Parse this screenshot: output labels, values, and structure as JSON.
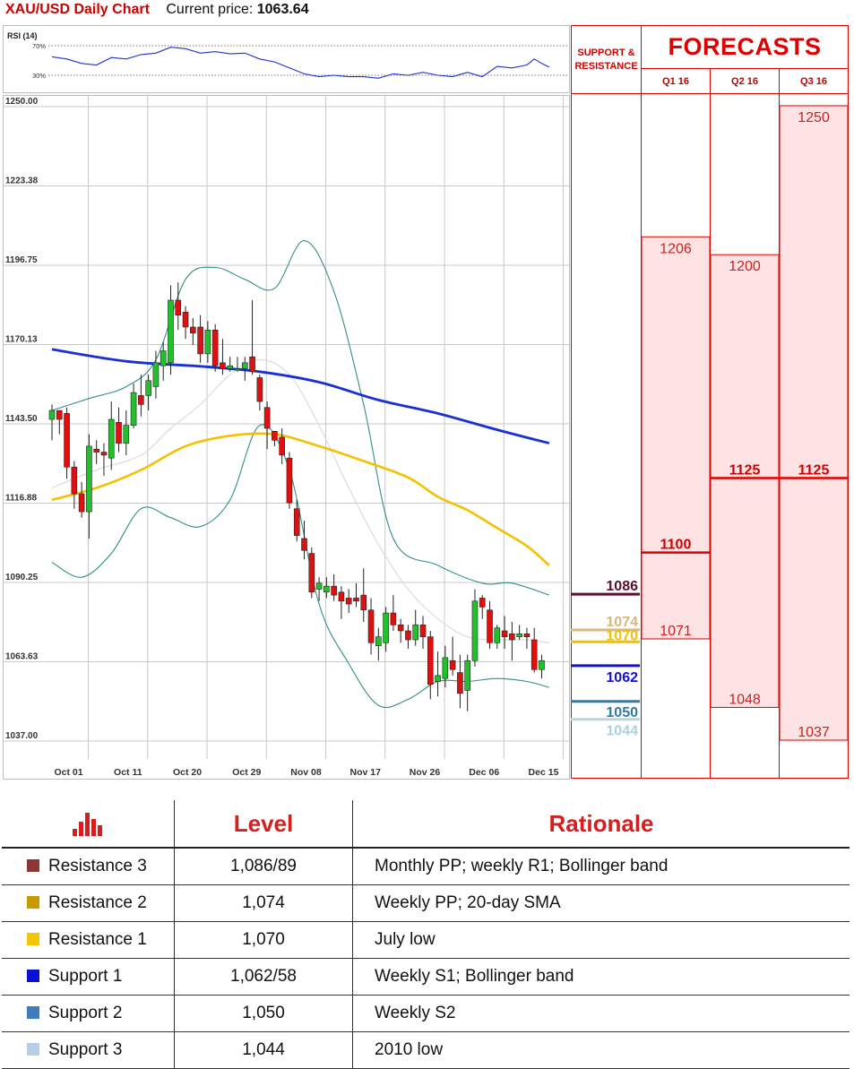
{
  "header": {
    "title": "XAU/USD Daily Chart",
    "price_label": "Current price:",
    "price_value": "1063.64"
  },
  "chart_data": {
    "type": "candlestick",
    "title": "XAU/USD Daily Chart",
    "ylim": [
      1037.0,
      1250.0
    ],
    "y_ticks": [
      "1250.00",
      "1223.38",
      "1196.75",
      "1170.13",
      "1143.50",
      "1116.88",
      "1090.25",
      "1063.63",
      "1037.00"
    ],
    "x_ticks": [
      {
        "i": 2,
        "label": "Oct 01"
      },
      {
        "i": 10,
        "label": "Oct 11"
      },
      {
        "i": 18,
        "label": "Oct 20"
      },
      {
        "i": 26,
        "label": "Oct 29"
      },
      {
        "i": 34,
        "label": "Nov 08"
      },
      {
        "i": 42,
        "label": "Nov 17"
      },
      {
        "i": 50,
        "label": "Nov 26"
      },
      {
        "i": 58,
        "label": "Dec 06"
      },
      {
        "i": 66,
        "label": "Dec 15"
      }
    ],
    "candles": [
      [
        1145,
        1150,
        1138,
        1148
      ],
      [
        1148,
        1148,
        1140,
        1145
      ],
      [
        1147,
        1149,
        1125,
        1129
      ],
      [
        1129,
        1131,
        1115,
        1120
      ],
      [
        1120,
        1124,
        1112,
        1114
      ],
      [
        1114,
        1140,
        1105,
        1136
      ],
      [
        1135,
        1138,
        1130,
        1134
      ],
      [
        1134,
        1137,
        1126,
        1133
      ],
      [
        1132,
        1151,
        1128,
        1145
      ],
      [
        1144,
        1149,
        1134,
        1137
      ],
      [
        1137,
        1148,
        1133,
        1143
      ],
      [
        1143,
        1157,
        1142,
        1154
      ],
      [
        1153,
        1160,
        1146,
        1150
      ],
      [
        1153,
        1160,
        1148,
        1158
      ],
      [
        1156,
        1168,
        1152,
        1164
      ],
      [
        1163,
        1171,
        1158,
        1168
      ],
      [
        1164,
        1190,
        1160,
        1185
      ],
      [
        1185,
        1191,
        1175,
        1180
      ],
      [
        1181,
        1183,
        1172,
        1176
      ],
      [
        1176,
        1179,
        1170,
        1174
      ],
      [
        1176,
        1180,
        1164,
        1167
      ],
      [
        1167,
        1178,
        1164,
        1175
      ],
      [
        1175,
        1177,
        1161,
        1163
      ],
      [
        1164,
        1172,
        1160,
        1162
      ],
      [
        1162,
        1166,
        1161,
        1163
      ],
      [
        1162,
        1166,
        1161,
        1162
      ],
      [
        1162,
        1166,
        1158,
        1164
      ],
      [
        1166,
        1185,
        1160,
        1161
      ],
      [
        1159,
        1160,
        1148,
        1151
      ],
      [
        1149,
        1151,
        1135,
        1142
      ],
      [
        1141,
        1141,
        1136,
        1138
      ],
      [
        1139,
        1142,
        1130,
        1133
      ],
      [
        1132,
        1134,
        1115,
        1117
      ],
      [
        1115,
        1118,
        1104,
        1106
      ],
      [
        1105,
        1111,
        1098,
        1101
      ],
      [
        1100,
        1102,
        1085,
        1087
      ],
      [
        1088,
        1092,
        1084,
        1090
      ],
      [
        1087,
        1092,
        1085,
        1089
      ],
      [
        1089,
        1093,
        1084,
        1086
      ],
      [
        1087,
        1089,
        1078,
        1084
      ],
      [
        1085,
        1088,
        1080,
        1083
      ],
      [
        1085,
        1090,
        1082,
        1084
      ],
      [
        1086,
        1095,
        1077,
        1081
      ],
      [
        1081,
        1085,
        1066,
        1070
      ],
      [
        1069,
        1075,
        1064,
        1072
      ],
      [
        1070,
        1082,
        1067,
        1080
      ],
      [
        1080,
        1086,
        1074,
        1076
      ],
      [
        1076,
        1078,
        1070,
        1074
      ],
      [
        1074,
        1076,
        1068,
        1071
      ],
      [
        1071,
        1081,
        1069,
        1076
      ],
      [
        1076,
        1079,
        1068,
        1072
      ],
      [
        1072,
        1074,
        1051,
        1056
      ],
      [
        1057,
        1067,
        1052,
        1059
      ],
      [
        1058,
        1069,
        1055,
        1065
      ],
      [
        1064,
        1072,
        1059,
        1061
      ],
      [
        1060,
        1066,
        1048,
        1053
      ],
      [
        1054,
        1066,
        1047,
        1064
      ],
      [
        1064,
        1088,
        1062,
        1084
      ],
      [
        1085,
        1086,
        1078,
        1082
      ],
      [
        1081,
        1084,
        1068,
        1070
      ],
      [
        1070,
        1076,
        1068,
        1075
      ],
      [
        1074,
        1079,
        1068,
        1072
      ],
      [
        1073,
        1077,
        1064,
        1071
      ],
      [
        1072,
        1076,
        1071,
        1073
      ],
      [
        1073,
        1075,
        1068,
        1072
      ],
      [
        1071,
        1075,
        1060,
        1061
      ],
      [
        1061,
        1066,
        1058,
        1064
      ]
    ],
    "sma_200": [
      [
        0,
        1168.5
      ],
      [
        10,
        1164.5
      ],
      [
        20,
        1162.8
      ],
      [
        28,
        1161.0
      ],
      [
        36,
        1157.5
      ],
      [
        44,
        1151.5
      ],
      [
        52,
        1147.0
      ],
      [
        60,
        1141.5
      ],
      [
        67,
        1137.0
      ]
    ],
    "sma_100": [
      [
        0,
        1118.0
      ],
      [
        6,
        1122.0
      ],
      [
        12,
        1128.0
      ],
      [
        18,
        1136.0
      ],
      [
        24,
        1139.5
      ],
      [
        30,
        1140.0
      ],
      [
        36,
        1136.0
      ],
      [
        42,
        1131.0
      ],
      [
        48,
        1125.5
      ],
      [
        52,
        1119.0
      ],
      [
        56,
        1114.5
      ],
      [
        60,
        1108.5
      ],
      [
        64,
        1102.5
      ],
      [
        67,
        1096.0
      ]
    ],
    "bb_upper": [
      [
        0,
        1148
      ],
      [
        5,
        1152
      ],
      [
        10,
        1156
      ],
      [
        14,
        1165
      ],
      [
        18,
        1192
      ],
      [
        22,
        1196
      ],
      [
        26,
        1192
      ],
      [
        30,
        1189
      ],
      [
        34,
        1205
      ],
      [
        38,
        1188
      ],
      [
        42,
        1150
      ],
      [
        46,
        1105
      ],
      [
        52,
        1096
      ],
      [
        58,
        1090
      ],
      [
        62,
        1090
      ],
      [
        67,
        1086
      ]
    ],
    "bb_middle": [
      [
        0,
        1122
      ],
      [
        6,
        1128
      ],
      [
        12,
        1133
      ],
      [
        16,
        1142
      ],
      [
        20,
        1150
      ],
      [
        24,
        1160
      ],
      [
        28,
        1165
      ],
      [
        32,
        1160
      ],
      [
        36,
        1143
      ],
      [
        40,
        1122
      ],
      [
        44,
        1103
      ],
      [
        48,
        1088
      ],
      [
        52,
        1078
      ],
      [
        56,
        1072
      ],
      [
        60,
        1071
      ],
      [
        64,
        1071
      ],
      [
        67,
        1070
      ]
    ],
    "bb_lower": [
      [
        0,
        1097
      ],
      [
        4,
        1092
      ],
      [
        8,
        1100
      ],
      [
        12,
        1115
      ],
      [
        16,
        1112
      ],
      [
        20,
        1109
      ],
      [
        24,
        1118
      ],
      [
        28,
        1143
      ],
      [
        32,
        1128
      ],
      [
        36,
        1083
      ],
      [
        40,
        1063
      ],
      [
        44,
        1049
      ],
      [
        48,
        1051
      ],
      [
        52,
        1057
      ],
      [
        56,
        1057
      ],
      [
        60,
        1058
      ],
      [
        64,
        1057
      ],
      [
        67,
        1055
      ]
    ],
    "rsi": {
      "label": "RSI (14)",
      "levels": [
        "70%",
        "30%"
      ],
      "values": [
        [
          0,
          55
        ],
        [
          2,
          52
        ],
        [
          4,
          46
        ],
        [
          6,
          44
        ],
        [
          8,
          54
        ],
        [
          10,
          52
        ],
        [
          12,
          58
        ],
        [
          14,
          60
        ],
        [
          16,
          68
        ],
        [
          18,
          66
        ],
        [
          20,
          60
        ],
        [
          22,
          62
        ],
        [
          24,
          59
        ],
        [
          26,
          60
        ],
        [
          28,
          52
        ],
        [
          30,
          48
        ],
        [
          32,
          40
        ],
        [
          34,
          32
        ],
        [
          36,
          28
        ],
        [
          38,
          30
        ],
        [
          40,
          28
        ],
        [
          42,
          28
        ],
        [
          44,
          26
        ],
        [
          46,
          32
        ],
        [
          48,
          30
        ],
        [
          50,
          34
        ],
        [
          52,
          30
        ],
        [
          54,
          28
        ],
        [
          56,
          34
        ],
        [
          58,
          28
        ],
        [
          60,
          42
        ],
        [
          62,
          40
        ],
        [
          64,
          44
        ],
        [
          65,
          52
        ],
        [
          66,
          46
        ],
        [
          67,
          41
        ]
      ]
    }
  },
  "sr_levels": [
    {
      "label": "1086",
      "value": 1086,
      "color": "#5b0f2e",
      "text_color": "#5b0f2e"
    },
    {
      "label": "1074",
      "value": 1074,
      "color": "#d8b778",
      "text_color": "#d8b778"
    },
    {
      "label": "1070",
      "value": 1070,
      "color": "#f2c000",
      "text_color": "#f2c000"
    },
    {
      "label": "1062",
      "value": 1062,
      "color": "#1212d0",
      "text_color": "#1212d0"
    },
    {
      "label": "1050",
      "value": 1050,
      "color": "#2b7ba6",
      "text_color": "#2b7ba6"
    },
    {
      "label": "1044",
      "value": 1044,
      "color": "#b5d8e0",
      "text_color": "#a8d2dc"
    }
  ],
  "forecasts": {
    "title": "FORECASTS",
    "sr_header": "SUPPORT & RESISTANCE",
    "columns": [
      {
        "quarter": "Q1 16",
        "high": 1206,
        "avg": 1100,
        "low": 1071
      },
      {
        "quarter": "Q2 16",
        "high": 1200,
        "avg": 1125,
        "low": 1048
      },
      {
        "quarter": "Q3 16",
        "high": 1250,
        "avg": 1125,
        "low": 1037
      }
    ]
  },
  "table": {
    "headers": [
      "Level",
      "Rationale"
    ],
    "icon": "bar-chart-icon",
    "rows": [
      {
        "name": "Resistance 3",
        "level": "1,086/89",
        "rationale": "Monthly PP; weekly R1; Bollinger band",
        "color": "#8e3535"
      },
      {
        "name": "Resistance 2",
        "level": "1,074",
        "rationale": "Weekly PP; 20-day SMA",
        "color": "#c99a00"
      },
      {
        "name": "Resistance 1",
        "level": "1,070",
        "rationale": "July low",
        "color": "#f2c500"
      },
      {
        "name": "Support 1",
        "level": "1,062/58",
        "rationale": "Weekly S1; Bollinger band",
        "color": "#0a10d4"
      },
      {
        "name": "Support 2",
        "level": "1,050",
        "rationale": "Weekly S2",
        "color": "#3c7dc0"
      },
      {
        "name": "Support 3",
        "level": "1,044",
        "rationale": "2010 low",
        "color": "#b9cde8"
      }
    ]
  }
}
